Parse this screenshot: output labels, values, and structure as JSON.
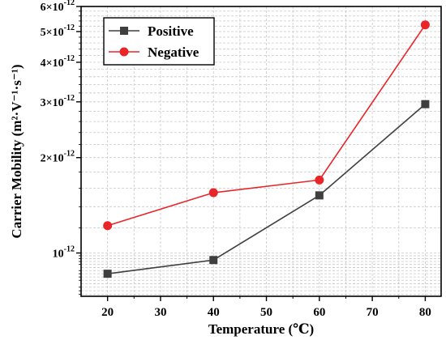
{
  "chart_data": {
    "type": "line",
    "xlabel": "Temperature (℃)",
    "ylabel": "Carrier Mobility (m²·V⁻¹·s⁻¹)",
    "x": [
      20,
      40,
      60,
      80
    ],
    "xlim": [
      15,
      83
    ],
    "xticks": [
      20,
      30,
      40,
      50,
      60,
      70,
      80
    ],
    "xtick_labels": [
      "20",
      "30",
      "40",
      "50",
      "60",
      "70",
      "80"
    ],
    "y_scale": "log",
    "ylim": [
      7.3e-13,
      6e-12
    ],
    "ytick_labels": [
      {
        "value": 1e-12,
        "mantissa": "",
        "exp": "-12"
      },
      {
        "value": 2e-12,
        "mantissa": "2",
        "exp": "-12"
      },
      {
        "value": 3e-12,
        "mantissa": "3",
        "exp": "-12"
      },
      {
        "value": 4e-12,
        "mantissa": "4",
        "exp": "-12"
      },
      {
        "value": 5e-12,
        "mantissa": "5",
        "exp": "-12"
      },
      {
        "value": 6e-12,
        "mantissa": "6",
        "exp": "-12"
      }
    ],
    "grid": true,
    "legend_position": "top-left",
    "series": [
      {
        "name": "Positive",
        "marker": "square",
        "color": "#3f3f3f",
        "values": [
          8.6e-13,
          9.5e-13,
          1.52e-12,
          2.95e-12
        ]
      },
      {
        "name": "Negative",
        "marker": "circle",
        "color": "#e8262a",
        "values": [
          1.22e-12,
          1.55e-12,
          1.7e-12,
          5.25e-12
        ]
      }
    ]
  }
}
